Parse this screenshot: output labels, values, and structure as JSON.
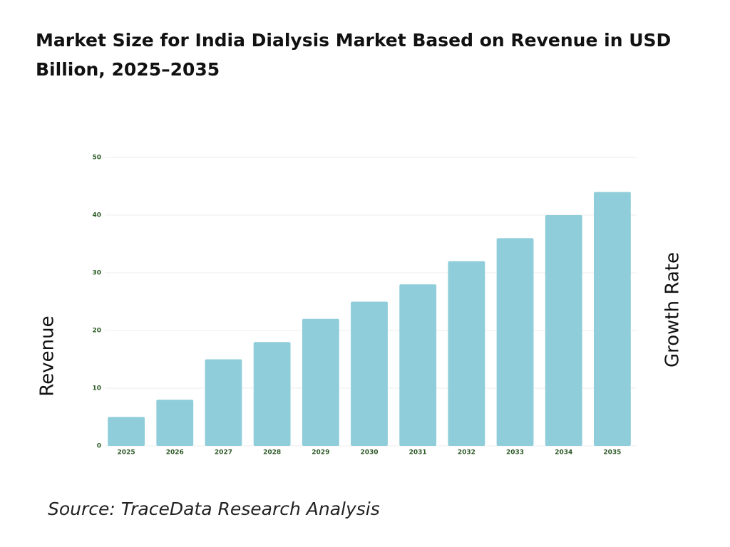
{
  "chart_data": {
    "type": "bar",
    "title": "Market Size for India Dialysis Market Based on Revenue in USD Billion, 2025–2035",
    "categories": [
      "2025",
      "2026",
      "2027",
      "2028",
      "2029",
      "2030",
      "2031",
      "2032",
      "2033",
      "2034",
      "2035"
    ],
    "values": [
      5,
      8,
      15,
      18,
      22,
      25,
      28,
      32,
      36,
      40,
      44
    ],
    "color": "#8ecdd9",
    "ylim": [
      0,
      50
    ],
    "yticks": [
      0,
      10,
      20,
      30,
      40,
      50
    ],
    "grid": true,
    "y_label": "Revenue",
    "y2_label": "Growth Rate",
    "source": "Source: TraceData Research Analysis"
  }
}
